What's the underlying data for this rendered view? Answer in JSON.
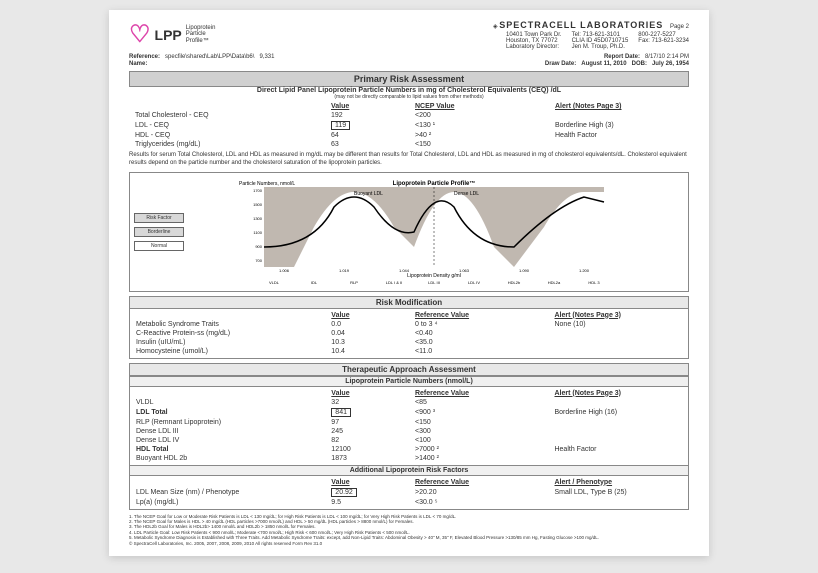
{
  "header": {
    "logo_main": "LPP",
    "logo_sub1": "Lipoprotein",
    "logo_sub2": "Particle",
    "logo_sub3": "Profile™",
    "lab_name": "SPECTRACELL LABORATORIES",
    "page_num": "Page 2",
    "addr1": "10401 Town Park Dr.",
    "addr2": "Houston, TX  77072",
    "addr3": "Laboratory Director:",
    "tel": "Tel: 713-621-3101",
    "clia": "CLIA ID 45D0710715",
    "director": "Jen M. Troup, Ph.D.",
    "phone800": "800-227-5227",
    "fax": "Fax: 713-621-3234"
  },
  "meta": {
    "ref_label": "Reference:",
    "ref_val": "specfile\\shared\\Lab\\LPP\\Data\\b6\\",
    "ref_num": "9,331",
    "name_label": "Name:",
    "draw_label": "Draw Date:",
    "draw_val": "August 11, 2010",
    "report_label": "Report  Date:",
    "report_val": "8/17/10 2:14 PM",
    "dob_label": "DOB:",
    "dob_val": "July 26, 1954"
  },
  "primary": {
    "title": "Primary Risk Assessment",
    "subtitle": "Direct Lipid Panel   Lipoprotein Particle Numbers in mg of Cholesterol Equivalents (CEQ) /dL",
    "subnote": "(may not be directly comparable to lipid values from other methods)",
    "col_value": "Value",
    "col_ncep": "NCEP  Value",
    "col_alert": "Alert  (Notes Page 3)",
    "rows": [
      {
        "name": "Total Cholesterol - CEQ",
        "value": "192",
        "ref": "<200",
        "alert": ""
      },
      {
        "name": "LDL - CEQ",
        "value": "119",
        "ref": "<130 ¹",
        "alert": "Borderline High (3)",
        "boxed": true
      },
      {
        "name": "HDL - CEQ",
        "value": "64",
        "ref": ">40 ²",
        "alert": "Health Factor"
      },
      {
        "name": "Triglycerides (mg/dL)",
        "value": "63",
        "ref": "<150",
        "alert": ""
      }
    ],
    "note": "Results for serum Total Cholesterol, LDL and HDL as measured in mg/dL may be different than results for Total Cholesterol, LDL and HDL as measured in mg of cholesterol equivalents/dL.  Cholesterol equivalent results depend on the particle number and the cholesterol saturation of the lipoprotein particles."
  },
  "chart": {
    "title": "Lipoprotein Particle Profile™",
    "ylabel": "Particle Numbers, nmol/L",
    "legend": [
      "Risk Factor",
      "Borderline",
      "Normal"
    ],
    "labels": {
      "buoyant": "Buoyant LDL",
      "dense": "Dense LDL"
    },
    "yticks_left": [
      "1700",
      "1500",
      "1300",
      "1100",
      "900",
      "700"
    ],
    "yticks_right": [
      "8500",
      "7500",
      "6500"
    ],
    "xlabel": "Lipoprotein Density g/ml",
    "xticks": [
      "1.006",
      "1.019",
      "1.044",
      "1.063",
      "1.090",
      "1.200"
    ],
    "xcat": [
      "VLDL",
      "IDL",
      "RLP",
      "LDL I & II",
      "LDL III",
      "LDL IV",
      "HDL2b",
      "HDL2a",
      "HDL 3"
    ],
    "colors": {
      "risk": "#c0b8b0",
      "border": "#d8d4d0",
      "normal": "#ffffff",
      "line": "#000000"
    }
  },
  "risk_mod": {
    "title": "Risk Modification",
    "col_value": "Value",
    "col_ref": "Reference Value",
    "col_alert": "Alert  (Notes Page 3)",
    "rows": [
      {
        "name": "Metabolic Syndrome Traits",
        "value": "0.0",
        "ref": "0 to 3 ⁴",
        "alert": "None (10)"
      },
      {
        "name": "C-Reactive Protein-ss (mg/dL)",
        "value": "0.04",
        "ref": "<0.40",
        "alert": ""
      },
      {
        "name": "Insulin (uIU/mL)",
        "value": "10.3",
        "ref": "<35.0",
        "alert": ""
      },
      {
        "name": "Homocysteine (umol/L)",
        "value": "10.4",
        "ref": "<11.0",
        "alert": ""
      }
    ]
  },
  "therapeutic": {
    "title": "Therapeutic Approach Assessment",
    "sub1": "Lipoprotein Particle Numbers  (nmol/L)",
    "col_value": "Value",
    "col_ref": "Reference Value",
    "col_alert": "Alert  (Notes Page 3)",
    "rows1": [
      {
        "name": "VLDL",
        "value": "32",
        "ref": "<85",
        "alert": ""
      },
      {
        "name": "LDL Total",
        "value": "841",
        "ref": "<900 ³",
        "alert": "Borderline High (16)",
        "boxed": true,
        "bold": true
      },
      {
        "name": "RLP  (Remnant Lipoprotein)",
        "value": "97",
        "ref": "<150",
        "alert": ""
      },
      {
        "name": "Dense LDL III",
        "value": "245",
        "ref": "<300",
        "alert": ""
      },
      {
        "name": "Dense LDL IV",
        "value": "82",
        "ref": "<100",
        "alert": ""
      },
      {
        "name": "HDL Total",
        "value": "12100",
        "ref": ">7000 ²",
        "alert": "Health Factor",
        "bold": true
      },
      {
        "name": "Buoyant HDL 2b",
        "value": "1873",
        "ref": ">1400 ²",
        "alert": ""
      }
    ],
    "sub2": "Additional Lipoprotein Risk Factors",
    "col_alert2": "Alert / Phenotype",
    "rows2": [
      {
        "name": "LDL  Mean  Size (nm) / Phenotype",
        "value": "20.92",
        "ref": ">20.20",
        "alert": "Small LDL, Type B (25)",
        "boxed": true
      },
      {
        "name": "Lp(a) (mg/dL)",
        "value": "9.5",
        "ref": "<30.0 ⁵",
        "alert": ""
      }
    ]
  },
  "footnotes": [
    "1.  The NCEP Goal for Low or Moderate Risk Patients is LDL < 130 mg/dL; for High Risk Patients is LDL < 100 mg/dL; for Very High Risk Patients is LDL < 70 mg/dL.",
    "2.  The NCEP Goal for Males is HDL > 40 mg/dL (HDL particles >7000 nmol/L) and HDL > 50 mg/dL (HDL particles > 8800 nmol/L) for Females.",
    "3.  The HDL2b Goal for Males is HDL2b> 1400 nmol/L and HDL2b > 1850 nmol/L for Females.",
    "4.  LDL Particle Goal: Low Risk Patients < 900 nmol/L; Moderate <700 nmol/L; High Risk < 600 nmol/L; Very High Risk Patients < 500 nmol/L.",
    "5.  Metabolic Syndrome Diagnosis is Established with Three Traits.  Add Metabolic Syndrome Traits: except, add Non-Lipid Traits: Abdominal Obesity > 40\" M, 35\" F,     Elevated Blood Pressure >130/85 mm Hg,     Fasting Glucose >100 mg/dL.",
    "© SpectraCell Laboratories, Inc. 2005, 2007, 2008, 2009, 2010    All rights reserved   Form Rev 31.0"
  ]
}
